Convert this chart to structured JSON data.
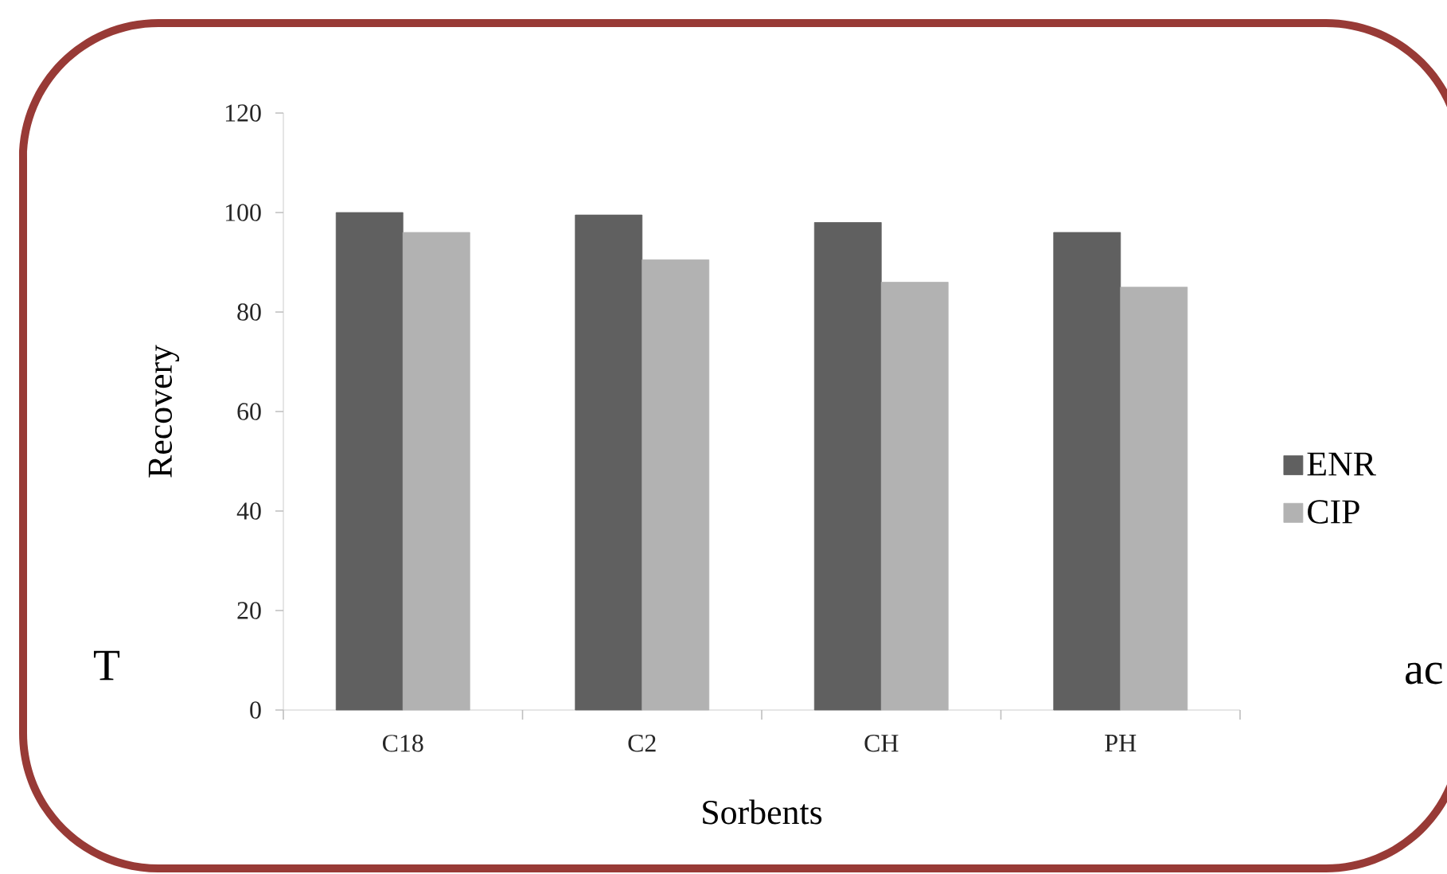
{
  "chart_data": {
    "type": "bar",
    "xlabel": "Sorbents",
    "ylabel": "Recovery",
    "categories": [
      "C18",
      "C2",
      "CH",
      "PH"
    ],
    "series": [
      {
        "name": "ENR",
        "color": "#606060",
        "values": [
          100,
          99.5,
          98,
          96
        ]
      },
      {
        "name": "CIP",
        "color": "#b2b2b2",
        "values": [
          96,
          90.5,
          86,
          85
        ]
      }
    ],
    "ylim": [
      0,
      120
    ],
    "yticks": [
      0,
      20,
      40,
      60,
      80,
      100,
      120
    ],
    "grid": false,
    "legend": "right",
    "annotations": [
      "T",
      "ac"
    ]
  }
}
